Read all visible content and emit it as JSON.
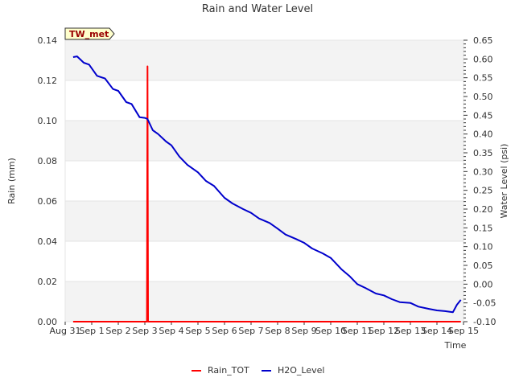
{
  "chart_data": {
    "type": "line",
    "title": "Rain and Water Level",
    "station_label": "TW_met",
    "xlabel": "Time",
    "ylabel_left": "Rain (mm)",
    "ylabel_right": "Water Level (psi)",
    "x_ticks": [
      "Aug 31",
      "Sep 1",
      "Sep 2",
      "Sep 3",
      "Sep 4",
      "Sep 5",
      "Sep 6",
      "Sep 7",
      "Sep 8",
      "Sep 9",
      "Sep 10",
      "Sep 11",
      "Sep 12",
      "Sep 13",
      "Sep 14",
      "Sep 15"
    ],
    "xlim": [
      0,
      15
    ],
    "y_left_ticks": [
      "0.00",
      "0.02",
      "0.04",
      "0.06",
      "0.08",
      "0.10",
      "0.12",
      "0.14"
    ],
    "ylim_left": [
      0,
      0.14
    ],
    "y_right_ticks": [
      "-0.10",
      "-0.05",
      "0.00",
      "0.05",
      "0.10",
      "0.15",
      "0.20",
      "0.25",
      "0.30",
      "0.35",
      "0.40",
      "0.45",
      "0.50",
      "0.55",
      "0.60",
      "0.65"
    ],
    "ylim_right": [
      -0.1,
      0.65
    ],
    "series": [
      {
        "name": "Rain_TOT",
        "axis": "left",
        "color": "#ff0000",
        "x": [
          0.3,
          3.08,
          3.1,
          3.12,
          3.15,
          14.9
        ],
        "y": [
          0.0,
          0.0,
          0.127,
          0.0,
          0.0,
          0.0
        ]
      },
      {
        "name": "H2O_Level",
        "axis": "right",
        "color": "#0000cc",
        "x": [
          0.3,
          0.45,
          0.7,
          0.9,
          1.2,
          1.5,
          1.8,
          2.0,
          2.3,
          2.5,
          2.8,
          3.0,
          3.1,
          3.3,
          3.5,
          3.8,
          4.0,
          4.3,
          4.6,
          5.0,
          5.3,
          5.6,
          6.0,
          6.3,
          6.7,
          7.0,
          7.3,
          7.7,
          8.0,
          8.3,
          8.7,
          9.0,
          9.3,
          9.7,
          10.0,
          10.4,
          10.7,
          11.0,
          11.3,
          11.7,
          12.0,
          12.3,
          12.6,
          13.0,
          13.3,
          13.7,
          14.0,
          14.3,
          14.6,
          14.75,
          14.9
        ],
        "y": [
          0.605,
          0.607,
          0.59,
          0.585,
          0.555,
          0.548,
          0.52,
          0.515,
          0.485,
          0.48,
          0.445,
          0.443,
          0.44,
          0.41,
          0.4,
          0.38,
          0.37,
          0.34,
          0.318,
          0.298,
          0.275,
          0.262,
          0.23,
          0.215,
          0.2,
          0.19,
          0.175,
          0.163,
          0.148,
          0.132,
          0.12,
          0.11,
          0.095,
          0.082,
          0.07,
          0.04,
          0.022,
          0.0,
          -0.01,
          -0.025,
          -0.03,
          -0.04,
          -0.048,
          -0.05,
          -0.06,
          -0.066,
          -0.07,
          -0.072,
          -0.075,
          -0.055,
          -0.042
        ]
      }
    ],
    "legend_position": "bottom-center",
    "grid": true
  }
}
